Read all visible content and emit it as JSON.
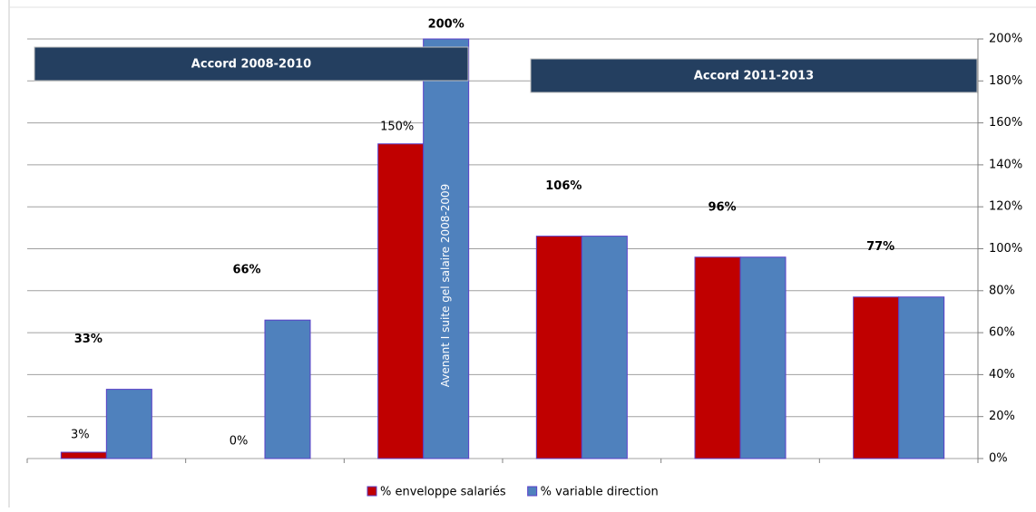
{
  "chart_data": {
    "type": "bar",
    "categories": [
      null,
      null,
      null,
      null,
      null,
      null
    ],
    "series": [
      {
        "name": "% enveloppe salariés",
        "color": "#c00000",
        "values": [
          3,
          0,
          150,
          106,
          96,
          77
        ],
        "value_labels": [
          "3%",
          "0%",
          "150%",
          null,
          null,
          null
        ]
      },
      {
        "name": "% variable direction",
        "color": "#4f81bd",
        "values": [
          33,
          66,
          200,
          106,
          96,
          77
        ],
        "value_labels": [
          "33%",
          "66%",
          "200%",
          "106%",
          "96%",
          "77%"
        ]
      }
    ],
    "ylim": [
      0,
      200
    ],
    "yticks": [
      {
        "value": 0,
        "label": "0%"
      },
      {
        "value": 20,
        "label": "20%"
      },
      {
        "value": 40,
        "label": "40%"
      },
      {
        "value": 60,
        "label": "60%"
      },
      {
        "value": 80,
        "label": "80%"
      },
      {
        "value": 100,
        "label": "100%"
      },
      {
        "value": 120,
        "label": "120%"
      },
      {
        "value": 140,
        "label": "140%"
      },
      {
        "value": 160,
        "label": "160%"
      },
      {
        "value": 180,
        "label": "180%"
      },
      {
        "value": 200,
        "label": "200%"
      }
    ],
    "grid": true,
    "annotations": [
      "Accord 2008-2010",
      "Accord 2011-2013",
      "Avenant I suite gel salaire 2008-2009"
    ]
  }
}
